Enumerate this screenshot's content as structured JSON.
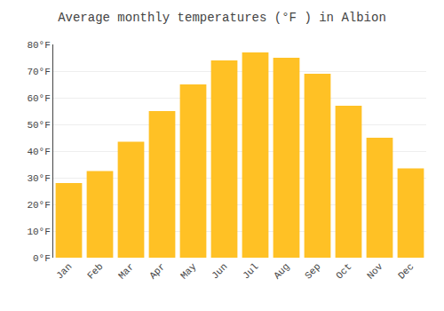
{
  "chart_data": {
    "type": "bar",
    "title": "Average monthly temperatures (°F ) in Albion",
    "categories": [
      "Jan",
      "Feb",
      "Mar",
      "Apr",
      "May",
      "Jun",
      "Jul",
      "Aug",
      "Sep",
      "Oct",
      "Nov",
      "Dec"
    ],
    "values": [
      28,
      32.5,
      43.5,
      55,
      65,
      74,
      77,
      75,
      69,
      57,
      45,
      33.5
    ],
    "color": "#FFC125",
    "ylim": [
      0,
      80
    ],
    "yticks": [
      {
        "value": 0,
        "label": "0°F"
      },
      {
        "value": 10,
        "label": "10°F"
      },
      {
        "value": 20,
        "label": "20°F"
      },
      {
        "value": 30,
        "label": "30°F"
      },
      {
        "value": 40,
        "label": "40°F"
      },
      {
        "value": 50,
        "label": "50°F"
      },
      {
        "value": 60,
        "label": "60°F"
      },
      {
        "value": 70,
        "label": "70°F"
      },
      {
        "value": 80,
        "label": "80°F"
      }
    ],
    "grid": true
  }
}
